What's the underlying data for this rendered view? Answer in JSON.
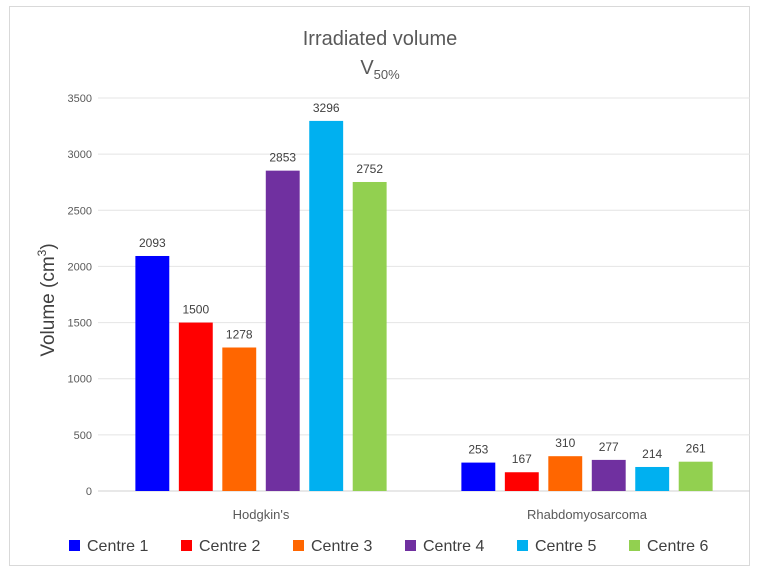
{
  "chart_data": {
    "type": "bar",
    "title": "Irradiated volume",
    "subtitle_main": "V",
    "subtitle_sub": "50%",
    "ylabel_main": "Volume (cm",
    "ylabel_sup": "3",
    "ylabel_end": ")",
    "xlabel": "",
    "ylim": [
      0,
      3500
    ],
    "yticks": [
      "0",
      "500",
      "1000",
      "1500",
      "2000",
      "2500",
      "3000",
      "3500"
    ],
    "categories": [
      "Hodgkin's",
      "Rhabdomyosarcoma"
    ],
    "grid": true,
    "legend_position": "bottom",
    "series": [
      {
        "name": "Centre 1",
        "color": "#0000ff",
        "values": [
          2093,
          253
        ]
      },
      {
        "name": "Centre 2",
        "color": "#ff0000",
        "values": [
          1500,
          167
        ]
      },
      {
        "name": "Centre 3",
        "color": "#ff6600",
        "values": [
          1278,
          310
        ]
      },
      {
        "name": "Centre 4",
        "color": "#7030a0",
        "values": [
          2853,
          277
        ]
      },
      {
        "name": "Centre 5",
        "color": "#00b0f0",
        "values": [
          3296,
          214
        ]
      },
      {
        "name": "Centre 6",
        "color": "#92d050",
        "values": [
          2752,
          261
        ]
      }
    ]
  }
}
